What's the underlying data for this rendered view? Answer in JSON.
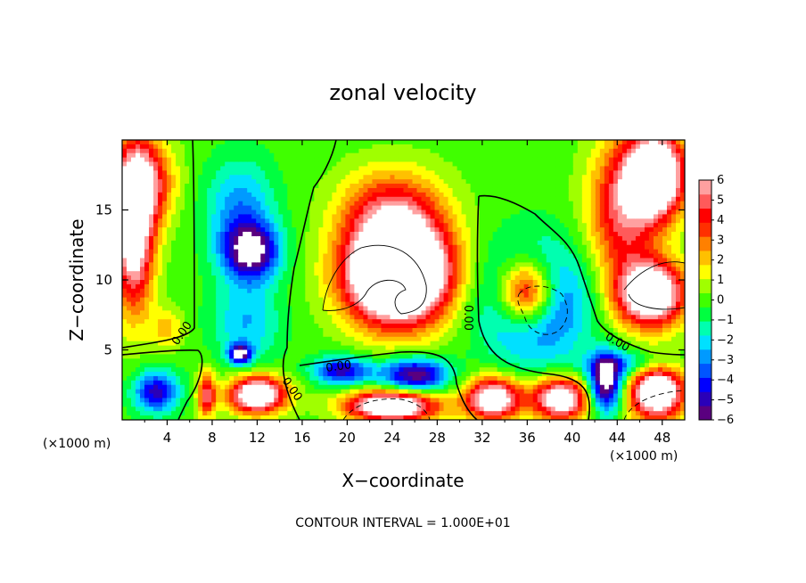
{
  "chart_data": {
    "type": "heatmap",
    "title": "zonal velocity",
    "xlabel": "X−coordinate",
    "ylabel": "Z−coordinate",
    "x_unit": "(×1000 m)",
    "y_unit": "(×1000 m)",
    "xlim": [
      0,
      50
    ],
    "ylim": [
      0,
      20
    ],
    "x_ticks": [
      4,
      8,
      12,
      16,
      20,
      24,
      28,
      32,
      36,
      40,
      44,
      48
    ],
    "x_tick_labels": [
      "4",
      "8",
      "12",
      "16",
      "20",
      "24",
      "28",
      "32",
      "36",
      "40",
      "44",
      "48"
    ],
    "y_ticks": [
      5,
      10,
      15
    ],
    "y_tick_labels": [
      "5",
      "10",
      "15"
    ],
    "colorbar": {
      "min": -6,
      "max": 6,
      "tick_labels": [
        "6",
        "5",
        "4",
        "3",
        "2",
        "1",
        "0",
        "−1",
        "−2",
        "−3",
        "−4",
        "−5",
        "−6"
      ],
      "colors": [
        "#5a007f",
        "#2a00b8",
        "#0000ff",
        "#0055ff",
        "#009aff",
        "#00e0ff",
        "#00ffb0",
        "#00ff40",
        "#40ff00",
        "#a0ff00",
        "#ffff00",
        "#ffc000",
        "#ff8000",
        "#ff3000",
        "#ff0000",
        "#ff5a5a",
        "#ffa0a0"
      ]
    },
    "contour_labels": [
      "0.00",
      "0.00",
      "0.00",
      "0.00",
      "0.00"
    ],
    "contour_interval_text": "CONTOUR INTERVAL = 1.000E+01",
    "features": [
      {
        "x": 1.0,
        "z": 13.5,
        "value": 8,
        "sx": 1.8,
        "sz": 5.5
      },
      {
        "x": 2.0,
        "z": 17.0,
        "value": 5,
        "sx": 2.5,
        "sz": 3.0
      },
      {
        "x": 4.0,
        "z": 6.5,
        "value": 2,
        "sx": 1.5,
        "sz": 1.5
      },
      {
        "x": 11.5,
        "z": 12.0,
        "value": -6,
        "sx": 2.5,
        "sz": 2.0
      },
      {
        "x": 10.5,
        "z": 15.0,
        "value": -3,
        "sx": 3.0,
        "sz": 3.5
      },
      {
        "x": 11.0,
        "z": 7.0,
        "value": -2.5,
        "sx": 3.0,
        "sz": 3.0
      },
      {
        "x": 10.5,
        "z": 4.7,
        "value": -6,
        "sx": 1.0,
        "sz": 0.7
      },
      {
        "x": 12.0,
        "z": 1.8,
        "value": 9,
        "sx": 2.5,
        "sz": 1.3
      },
      {
        "x": 7.5,
        "z": 1.8,
        "value": 5,
        "sx": 0.8,
        "sz": 1.6
      },
      {
        "x": 3.0,
        "z": 2.0,
        "value": -5,
        "sx": 2.0,
        "sz": 1.5
      },
      {
        "x": 24.5,
        "z": 10.5,
        "value": 14,
        "sx": 4.5,
        "sz": 3.5
      },
      {
        "x": 24.0,
        "z": 15.0,
        "value": 4,
        "sx": 4.5,
        "sz": 3.0
      },
      {
        "x": 19.5,
        "z": 3.5,
        "value": -5,
        "sx": 2.5,
        "sz": 1.0
      },
      {
        "x": 26.0,
        "z": 3.2,
        "value": -6,
        "sx": 3.0,
        "sz": 1.2
      },
      {
        "x": 24.0,
        "z": 1.0,
        "value": 9,
        "sx": 4.0,
        "sz": 1.1
      },
      {
        "x": 36.0,
        "z": 9.0,
        "value": 10,
        "sx": 2.6,
        "sz": 2.5
      },
      {
        "x": 36.5,
        "z": 8.5,
        "value": -7,
        "sx": 4.3,
        "sz": 3.8
      },
      {
        "x": 33.0,
        "z": 1.5,
        "value": 8,
        "sx": 2.5,
        "sz": 1.5
      },
      {
        "x": 39.0,
        "z": 1.5,
        "value": 8,
        "sx": 2.5,
        "sz": 1.5
      },
      {
        "x": 43.0,
        "z": 2.5,
        "value": -7,
        "sx": 1.5,
        "sz": 2.0
      },
      {
        "x": 47.5,
        "z": 17.5,
        "value": 10,
        "sx": 2.5,
        "sz": 3.0
      },
      {
        "x": 44.5,
        "z": 15.0,
        "value": 5,
        "sx": 3.0,
        "sz": 5.0
      },
      {
        "x": 47.0,
        "z": 9.0,
        "value": 9,
        "sx": 3.0,
        "sz": 2.3
      },
      {
        "x": 47.5,
        "z": 2.0,
        "value": 9,
        "sx": 2.5,
        "sz": 2.0
      },
      {
        "x": 45.0,
        "z": 4.0,
        "value": -3,
        "sx": 4.0,
        "sz": 1.0
      }
    ]
  }
}
